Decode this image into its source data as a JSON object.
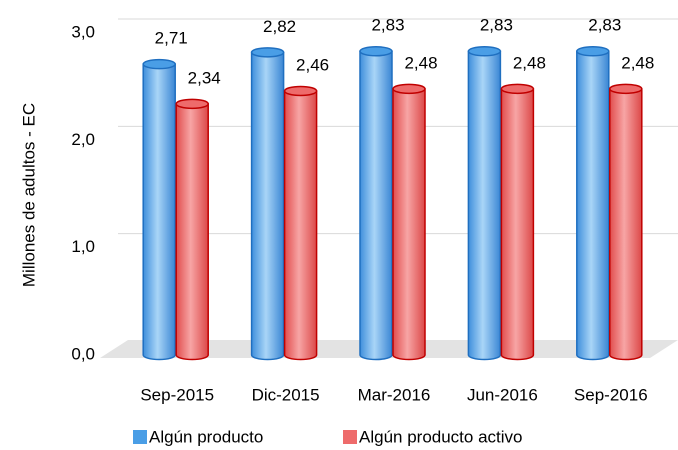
{
  "chart_data": {
    "type": "bar",
    "y_label": "Millones de adultos - EC",
    "categories": [
      "Sep-2015",
      "Dic-2015",
      "Mar-2016",
      "Jun-2016",
      "Sep-2016"
    ],
    "series": [
      {
        "name": "Algún producto",
        "color": "#4a9ee6",
        "values": [
          2.71,
          2.82,
          2.83,
          2.83,
          2.83
        ],
        "value_labels": [
          "2,71",
          "2,82",
          "2,83",
          "2,83",
          "2,83"
        ]
      },
      {
        "name": "Algún producto activo",
        "color": "#ee6b6b",
        "values": [
          2.34,
          2.46,
          2.48,
          2.48,
          2.48
        ],
        "value_labels": [
          "2,34",
          "2,46",
          "2,48",
          "2,48",
          "2,48"
        ]
      }
    ],
    "ylim": [
      0,
      3
    ],
    "yticks": [
      {
        "value": 0,
        "label": "0,0"
      },
      {
        "value": 1,
        "label": "1,0"
      },
      {
        "value": 2,
        "label": "2,0"
      },
      {
        "value": 3,
        "label": "3,0"
      }
    ],
    "grid": true,
    "legend": "bottom"
  }
}
